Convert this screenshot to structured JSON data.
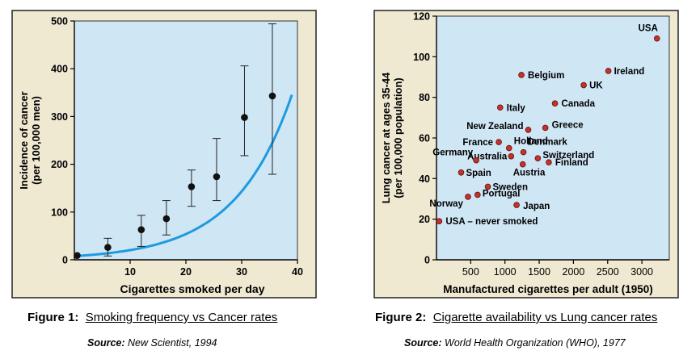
{
  "colors": {
    "frame_bg": "#efe9d2",
    "frame_border": "#222222",
    "plot_bg_1": "#cfe6f5",
    "plot_bg_2": "#cfe6f5",
    "curve": "#1e9ae0",
    "point_1": "#111111",
    "point_2": "#c8302a"
  },
  "figure1": {
    "caption_label": "Figure 1:",
    "caption_text": "Smoking frequency vs Cancer rates",
    "source_label": "Source:",
    "source_text": "New Scientist, 1994"
  },
  "figure2": {
    "caption_label": "Figure 2:",
    "caption_text": "Cigarette availability vs Lung cancer rates",
    "source_label": "Source:",
    "source_text": "World Health Organization (WHO), 1977"
  },
  "chart_data": [
    {
      "type": "scatter",
      "xlabel": "Cigarettes smoked per day",
      "ylabel": [
        "Incidence of cancer",
        "(per 100,000 men)"
      ],
      "xlim": [
        0,
        40
      ],
      "ylim": [
        0,
        500
      ],
      "xticks": [
        10,
        20,
        30,
        40
      ],
      "yticks": [
        0,
        100,
        200,
        300,
        400,
        500
      ],
      "grid": false,
      "points": [
        {
          "x": 0.5,
          "y": 9,
          "err_low": null,
          "err_high": null
        },
        {
          "x": 6,
          "y": 26,
          "err_low": 8,
          "err_high": 45
        },
        {
          "x": 12,
          "y": 63,
          "err_low": 28,
          "err_high": 93
        },
        {
          "x": 16.5,
          "y": 86,
          "err_low": 52,
          "err_high": 124
        },
        {
          "x": 21,
          "y": 153,
          "err_low": 112,
          "err_high": 188
        },
        {
          "x": 25.5,
          "y": 174,
          "err_low": 124,
          "err_high": 254
        },
        {
          "x": 30.5,
          "y": 298,
          "err_low": 218,
          "err_high": 406
        },
        {
          "x": 35.5,
          "y": 343,
          "err_low": 179,
          "err_high": 494
        }
      ],
      "trend_curve": {
        "type": "exponential",
        "from_x": 0.5,
        "to_x": 39,
        "y0": 8,
        "growth": 0.0978
      }
    },
    {
      "type": "scatter",
      "xlabel": "Manufactured cigarettes per adult (1950)",
      "ylabel": [
        "Lung cancer at ages 35-44",
        "(per 100,000 population)"
      ],
      "xlim": [
        0,
        3400
      ],
      "ylim": [
        0,
        120
      ],
      "xticks": [
        500,
        1000,
        1500,
        2000,
        2500,
        3000
      ],
      "yticks": [
        0,
        20,
        40,
        60,
        80,
        100,
        120
      ],
      "grid": false,
      "points": [
        {
          "label": "USA",
          "x": 3220,
          "y": 109
        },
        {
          "label": "Ireland",
          "x": 2510,
          "y": 93
        },
        {
          "label": "Belgium",
          "x": 1240,
          "y": 91
        },
        {
          "label": "UK",
          "x": 2150,
          "y": 86
        },
        {
          "label": "Canada",
          "x": 1730,
          "y": 77
        },
        {
          "label": "Italy",
          "x": 930,
          "y": 75
        },
        {
          "label": "New Zealand",
          "x": 1340,
          "y": 64
        },
        {
          "label": "Greece",
          "x": 1590,
          "y": 65
        },
        {
          "label": "France",
          "x": 910,
          "y": 58
        },
        {
          "label": "Holland",
          "x": 1060,
          "y": 55
        },
        {
          "label": "Denmark",
          "x": 1270,
          "y": 53
        },
        {
          "label": "Australia",
          "x": 1090,
          "y": 51
        },
        {
          "label": "Switzerland",
          "x": 1480,
          "y": 50
        },
        {
          "label": "Germany",
          "x": 580,
          "y": 49
        },
        {
          "label": "Finland",
          "x": 1640,
          "y": 48
        },
        {
          "label": "Austria",
          "x": 1260,
          "y": 47
        },
        {
          "label": "Spain",
          "x": 360,
          "y": 43
        },
        {
          "label": "Sweden",
          "x": 750,
          "y": 36
        },
        {
          "label": "Portugal",
          "x": 600,
          "y": 32
        },
        {
          "label": "Norway",
          "x": 460,
          "y": 31
        },
        {
          "label": "Japan",
          "x": 1170,
          "y": 27
        },
        {
          "label": "USA – never smoked",
          "x": 40,
          "y": 19
        }
      ]
    }
  ]
}
